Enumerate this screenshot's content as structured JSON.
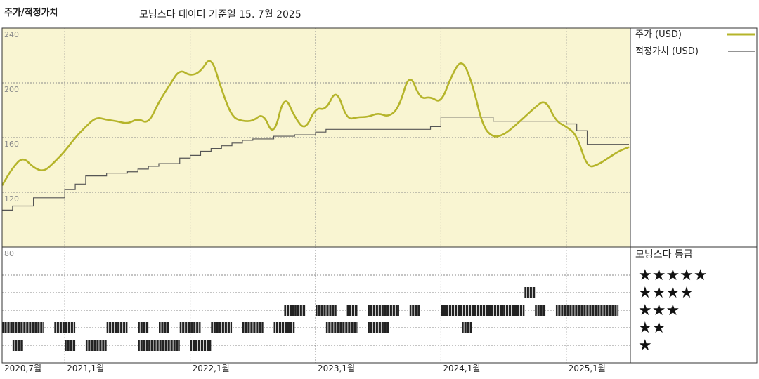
{
  "chart_data": {
    "type": "line",
    "title": "주가/적정가치",
    "subtitle": "모닝스타 데이터 기준일 15. 7월 2025",
    "colors": {
      "price": "#b5b42a",
      "fair_value": "#555555",
      "panel_bg": "#f9f5d2",
      "rating_bar": "#222222",
      "grid": "#8a8a8a"
    },
    "price_panel": {
      "ylim": [
        80,
        240
      ],
      "yticks": [
        "240",
        "200",
        "160",
        "120",
        "80"
      ]
    },
    "x_ticks": [
      "2020,7월",
      "2021,1월",
      "2022,1월",
      "2023,1월",
      "2024,1월",
      "2025,1월"
    ],
    "legend": {
      "price": "주가 (USD)",
      "fair_value": "적정가치 (USD)",
      "rating_title": "모닝스타 등급"
    },
    "rating_levels": [
      "★★★★★",
      "★★★★",
      "★★★",
      "★★",
      "★"
    ],
    "series": [
      {
        "name": "주가 (USD)",
        "points": [
          [
            "2020-07",
            125
          ],
          [
            "2020-08",
            138
          ],
          [
            "2020-09",
            146
          ],
          [
            "2020-10",
            138
          ],
          [
            "2020-11",
            135
          ],
          [
            "2020-12",
            142
          ],
          [
            "2021-01",
            150
          ],
          [
            "2021-02",
            160
          ],
          [
            "2021-03",
            168
          ],
          [
            "2021-04",
            175
          ],
          [
            "2021-05",
            173
          ],
          [
            "2021-06",
            172
          ],
          [
            "2021-07",
            170
          ],
          [
            "2021-08",
            174
          ],
          [
            "2021-09",
            170
          ],
          [
            "2021-10",
            186
          ],
          [
            "2021-11",
            198
          ],
          [
            "2021-12",
            210
          ],
          [
            "2022-01",
            205
          ],
          [
            "2022-02",
            208
          ],
          [
            "2022-03",
            220
          ],
          [
            "2022-04",
            195
          ],
          [
            "2022-05",
            175
          ],
          [
            "2022-06",
            172
          ],
          [
            "2022-07",
            172
          ],
          [
            "2022-08",
            178
          ],
          [
            "2022-09",
            160
          ],
          [
            "2022-10",
            192
          ],
          [
            "2022-11",
            175
          ],
          [
            "2022-12",
            165
          ],
          [
            "2023-01",
            182
          ],
          [
            "2023-02",
            180
          ],
          [
            "2023-03",
            196
          ],
          [
            "2023-04",
            173
          ],
          [
            "2023-05",
            175
          ],
          [
            "2023-06",
            175
          ],
          [
            "2023-07",
            178
          ],
          [
            "2023-08",
            175
          ],
          [
            "2023-09",
            182
          ],
          [
            "2023-10",
            208
          ],
          [
            "2023-11",
            188
          ],
          [
            "2023-12",
            190
          ],
          [
            "2024-01",
            185
          ],
          [
            "2024-02",
            205
          ],
          [
            "2024-03",
            218
          ],
          [
            "2024-04",
            200
          ],
          [
            "2024-05",
            168
          ],
          [
            "2024-06",
            160
          ],
          [
            "2024-07",
            162
          ],
          [
            "2024-08",
            168
          ],
          [
            "2024-09",
            175
          ],
          [
            "2024-10",
            182
          ],
          [
            "2024-11",
            188
          ],
          [
            "2024-12",
            172
          ],
          [
            "2025-01",
            168
          ],
          [
            "2025-02",
            162
          ],
          [
            "2025-03",
            138
          ],
          [
            "2025-04",
            140
          ],
          [
            "2025-05",
            145
          ],
          [
            "2025-06",
            150
          ],
          [
            "2025-07",
            153
          ]
        ]
      },
      {
        "name": "적정가치 (USD)",
        "points": [
          [
            "2020-07",
            107
          ],
          [
            "2020-08",
            110
          ],
          [
            "2020-10",
            116
          ],
          [
            "2021-01",
            122
          ],
          [
            "2021-02",
            126
          ],
          [
            "2021-03",
            132
          ],
          [
            "2021-05",
            134
          ],
          [
            "2021-07",
            135
          ],
          [
            "2021-08",
            137
          ],
          [
            "2021-09",
            139
          ],
          [
            "2021-10",
            141
          ],
          [
            "2021-12",
            145
          ],
          [
            "2022-01",
            147
          ],
          [
            "2022-02",
            150
          ],
          [
            "2022-03",
            152
          ],
          [
            "2022-04",
            154
          ],
          [
            "2022-05",
            156
          ],
          [
            "2022-06",
            158
          ],
          [
            "2022-07",
            159
          ],
          [
            "2022-09",
            161
          ],
          [
            "2022-11",
            162
          ],
          [
            "2023-01",
            164
          ],
          [
            "2023-02",
            166
          ],
          [
            "2023-04",
            166
          ],
          [
            "2023-06",
            166
          ],
          [
            "2023-08",
            166
          ],
          [
            "2023-10",
            166
          ],
          [
            "2023-12",
            168
          ],
          [
            "2024-01",
            175
          ],
          [
            "2024-03",
            175
          ],
          [
            "2024-06",
            172
          ],
          [
            "2024-09",
            172
          ],
          [
            "2024-12",
            172
          ],
          [
            "2025-01",
            170
          ],
          [
            "2025-02",
            165
          ],
          [
            "2025-03",
            155
          ],
          [
            "2025-07",
            155
          ]
        ]
      }
    ],
    "ratings": [
      {
        "level": 2,
        "segments": [
          [
            "2020-07",
            "2020-08"
          ],
          [
            "2020-08",
            "2020-11"
          ],
          [
            "2020-12",
            "2021-02"
          ],
          [
            "2021-05",
            "2021-07"
          ],
          [
            "2021-08",
            "2021-09"
          ],
          [
            "2021-10",
            "2021-11"
          ],
          [
            "2021-12",
            "2022-02"
          ],
          [
            "2022-03",
            "2022-05"
          ],
          [
            "2022-06",
            "2022-08"
          ],
          [
            "2022-09",
            "2022-11"
          ],
          [
            "2023-02",
            "2023-05"
          ],
          [
            "2023-06",
            "2023-08"
          ],
          [
            "2024-03",
            "2024-04"
          ]
        ]
      },
      {
        "level": 1,
        "segments": [
          [
            "2020-08",
            "2020-09"
          ],
          [
            "2021-01",
            "2021-02"
          ],
          [
            "2021-03",
            "2021-05"
          ],
          [
            "2021-08",
            "2021-09"
          ],
          [
            "2021-09",
            "2021-12"
          ],
          [
            "2022-01",
            "2022-03"
          ]
        ]
      },
      {
        "level": 3,
        "segments": [
          [
            "2022-10",
            "2022-11"
          ],
          [
            "2022-11",
            "2022-12"
          ],
          [
            "2023-01",
            "2023-03"
          ],
          [
            "2023-04",
            "2023-05"
          ],
          [
            "2023-06",
            "2023-09"
          ],
          [
            "2023-10",
            "2023-11"
          ],
          [
            "2024-01",
            "2024-07"
          ],
          [
            "2024-07",
            "2024-09"
          ],
          [
            "2024-10",
            "2024-11"
          ],
          [
            "2024-12",
            "2025-06"
          ]
        ]
      },
      {
        "level": 4,
        "segments": [
          [
            "2024-09",
            "2024-10"
          ]
        ]
      }
    ]
  }
}
